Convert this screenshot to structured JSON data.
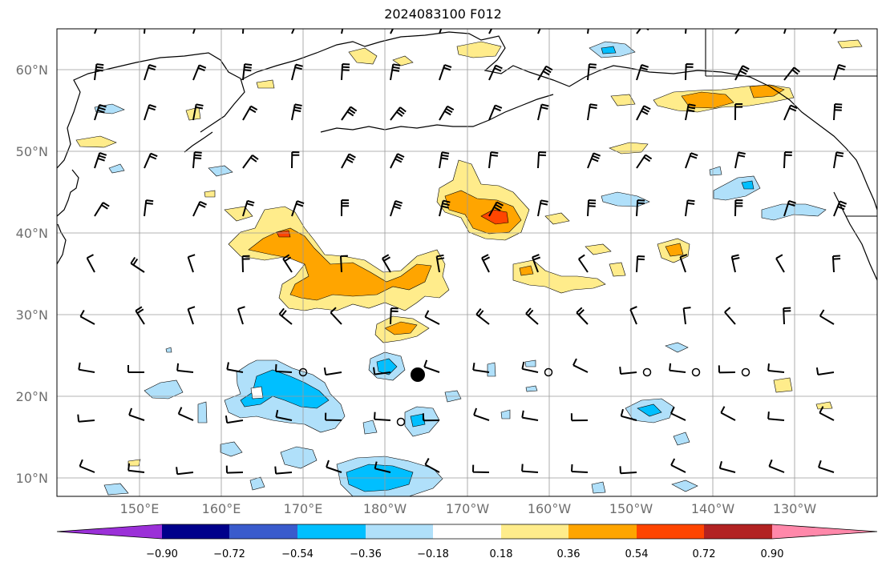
{
  "title": "2024083100 F012",
  "lat_ticks": [
    "60°N",
    "50°N",
    "40°N",
    "30°N",
    "20°N",
    "10°N"
  ],
  "lon_ticks": [
    "150°E",
    "160°E",
    "170°E",
    "180°W",
    "170°W",
    "160°W",
    "150°W",
    "140°W",
    "130°W"
  ],
  "colorbar": {
    "labels": [
      "−0.90",
      "−0.72",
      "−0.54",
      "−0.36",
      "−0.18",
      "0.18",
      "0.36",
      "0.54",
      "0.72",
      "0.90"
    ],
    "colors": [
      "#9b30d8",
      "#00008b",
      "#3a5bcc",
      "#00bfff",
      "#b0e0fa",
      "#ffffff",
      "#ffec8b",
      "#ffa500",
      "#ff4500",
      "#b22222",
      "#ff88aa"
    ]
  },
  "icons": {
    "wind_barbs": "wind-barb-icon",
    "station_circle": "station-circle-icon",
    "storm_center": "storm-center-icon"
  }
}
